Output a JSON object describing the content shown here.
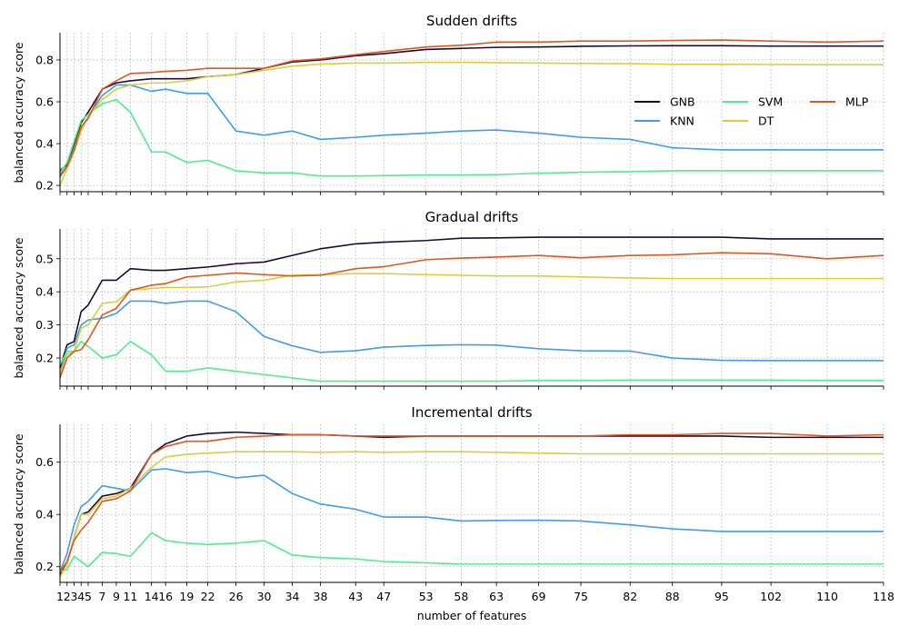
{
  "chart_data": [
    {
      "type": "line",
      "title": "Sudden drifts",
      "xlabel": "",
      "ylabel": "balanced accuracy score",
      "ylim": [
        0.17,
        0.93
      ],
      "yticks": [
        0.2,
        0.4,
        0.6,
        0.8
      ],
      "grid": true,
      "legend": {
        "placement": "center-right",
        "columns": 3
      },
      "series": [
        {
          "name": "GNB",
          "color": "#1f0a33",
          "values": [
            0.27,
            0.3,
            0.4,
            0.5,
            0.55,
            0.66,
            0.69,
            0.7,
            0.71,
            0.71,
            0.71,
            0.72,
            0.73,
            0.76,
            0.79,
            0.8,
            0.82,
            0.83,
            0.85,
            0.855,
            0.86,
            0.862,
            0.865,
            0.867,
            0.868,
            0.868,
            0.866,
            0.866,
            0.866
          ]
        },
        {
          "name": "KNN",
          "color": "#3f9cf0",
          "values": [
            0.24,
            0.29,
            0.38,
            0.47,
            0.53,
            0.63,
            0.68,
            0.68,
            0.65,
            0.66,
            0.64,
            0.64,
            0.46,
            0.44,
            0.46,
            0.42,
            0.43,
            0.44,
            0.45,
            0.46,
            0.465,
            0.45,
            0.43,
            0.42,
            0.38,
            0.37,
            0.37,
            0.37,
            0.37
          ]
        },
        {
          "name": "SVM",
          "color": "#4bf08a",
          "values": [
            0.26,
            0.31,
            0.41,
            0.51,
            0.54,
            0.59,
            0.61,
            0.55,
            0.36,
            0.36,
            0.31,
            0.32,
            0.27,
            0.26,
            0.26,
            0.245,
            0.245,
            0.247,
            0.25,
            0.25,
            0.252,
            0.258,
            0.263,
            0.266,
            0.27,
            0.27,
            0.27,
            0.27,
            0.27
          ]
        },
        {
          "name": "DT",
          "color": "#d8cf3c",
          "values": [
            0.2,
            0.28,
            0.36,
            0.46,
            0.53,
            0.61,
            0.66,
            0.68,
            0.69,
            0.69,
            0.7,
            0.72,
            0.73,
            0.75,
            0.77,
            0.78,
            0.785,
            0.785,
            0.788,
            0.788,
            0.787,
            0.785,
            0.783,
            0.782,
            0.779,
            0.779,
            0.778,
            0.777,
            0.777
          ]
        },
        {
          "name": "MLP",
          "color": "#e2561e",
          "values": [
            0.25,
            0.29,
            0.37,
            0.48,
            0.52,
            0.66,
            0.7,
            0.735,
            0.74,
            0.745,
            0.75,
            0.76,
            0.76,
            0.76,
            0.795,
            0.805,
            0.825,
            0.84,
            0.862,
            0.87,
            0.885,
            0.885,
            0.89,
            0.89,
            0.893,
            0.895,
            0.89,
            0.885,
            0.89
          ]
        }
      ]
    },
    {
      "type": "line",
      "title": "Gradual drifts",
      "xlabel": "",
      "ylabel": "balanced accuracy score",
      "ylim": [
        0.115,
        0.59
      ],
      "yticks": [
        0.2,
        0.3,
        0.4,
        0.5
      ],
      "grid": true,
      "series": [
        {
          "name": "GNB",
          "color": "#1f0a33",
          "values": [
            0.17,
            0.24,
            0.25,
            0.34,
            0.36,
            0.435,
            0.435,
            0.47,
            0.465,
            0.465,
            0.47,
            0.475,
            0.485,
            0.49,
            0.51,
            0.53,
            0.545,
            0.55,
            0.555,
            0.562,
            0.563,
            0.565,
            0.565,
            0.565,
            0.565,
            0.565,
            0.56,
            0.56,
            0.56
          ]
        },
        {
          "name": "KNN",
          "color": "#3f9cf0",
          "values": [
            0.15,
            0.23,
            0.24,
            0.3,
            0.315,
            0.32,
            0.335,
            0.372,
            0.372,
            0.365,
            0.372,
            0.372,
            0.34,
            0.265,
            0.237,
            0.217,
            0.222,
            0.233,
            0.238,
            0.24,
            0.239,
            0.228,
            0.222,
            0.221,
            0.2,
            0.193,
            0.192,
            0.192,
            0.192
          ]
        },
        {
          "name": "SVM",
          "color": "#4bf08a",
          "values": [
            0.18,
            0.22,
            0.22,
            0.25,
            0.235,
            0.2,
            0.21,
            0.25,
            0.21,
            0.16,
            0.16,
            0.17,
            0.16,
            0.15,
            0.14,
            0.13,
            0.13,
            0.13,
            0.13,
            0.13,
            0.13,
            0.132,
            0.132,
            0.133,
            0.133,
            0.133,
            0.133,
            0.132,
            0.132
          ]
        },
        {
          "name": "DT",
          "color": "#d8cf3c",
          "values": [
            0.15,
            0.21,
            0.22,
            0.29,
            0.3,
            0.365,
            0.37,
            0.405,
            0.41,
            0.413,
            0.413,
            0.415,
            0.43,
            0.435,
            0.45,
            0.452,
            0.455,
            0.455,
            0.452,
            0.45,
            0.448,
            0.448,
            0.445,
            0.442,
            0.44,
            0.44,
            0.44,
            0.44,
            0.44
          ]
        },
        {
          "name": "MLP",
          "color": "#e2561e",
          "values": [
            0.14,
            0.2,
            0.22,
            0.225,
            0.255,
            0.33,
            0.35,
            0.405,
            0.42,
            0.425,
            0.445,
            0.45,
            0.457,
            0.452,
            0.448,
            0.45,
            0.47,
            0.476,
            0.497,
            0.502,
            0.505,
            0.51,
            0.503,
            0.51,
            0.512,
            0.518,
            0.515,
            0.5,
            0.51
          ]
        }
      ]
    },
    {
      "type": "line",
      "title": "Incremental drifts",
      "xlabel": "number of features",
      "ylabel": "balanced accuracy score",
      "ylim": [
        0.14,
        0.745
      ],
      "yticks": [
        0.2,
        0.4,
        0.6
      ],
      "grid": true,
      "x": [
        1,
        2,
        3,
        4,
        5,
        7,
        9,
        11,
        14,
        16,
        19,
        22,
        26,
        30,
        34,
        38,
        43,
        47,
        53,
        58,
        63,
        69,
        75,
        82,
        88,
        95,
        102,
        110,
        118
      ],
      "xticks": [
        1,
        2,
        3,
        4,
        5,
        7,
        9,
        11,
        14,
        16,
        19,
        22,
        26,
        30,
        34,
        38,
        43,
        47,
        53,
        58,
        63,
        69,
        75,
        82,
        88,
        95,
        102,
        110,
        118
      ],
      "series": [
        {
          "name": "GNB",
          "color": "#1f0a33",
          "values": [
            0.17,
            0.21,
            0.31,
            0.4,
            0.41,
            0.47,
            0.48,
            0.5,
            0.63,
            0.67,
            0.7,
            0.71,
            0.715,
            0.71,
            0.705,
            0.705,
            0.7,
            0.695,
            0.7,
            0.7,
            0.7,
            0.7,
            0.7,
            0.7,
            0.7,
            0.7,
            0.695,
            0.695,
            0.695
          ]
        },
        {
          "name": "KNN",
          "color": "#3f9cf0",
          "values": [
            0.18,
            0.25,
            0.36,
            0.43,
            0.45,
            0.51,
            0.5,
            0.49,
            0.57,
            0.575,
            0.56,
            0.565,
            0.54,
            0.55,
            0.48,
            0.44,
            0.42,
            0.39,
            0.39,
            0.375,
            0.377,
            0.378,
            0.375,
            0.36,
            0.345,
            0.335,
            0.335,
            0.335,
            0.335
          ]
        },
        {
          "name": "SVM",
          "color": "#4bf08a",
          "values": [
            0.18,
            0.19,
            0.24,
            0.22,
            0.2,
            0.255,
            0.25,
            0.24,
            0.33,
            0.3,
            0.29,
            0.285,
            0.29,
            0.3,
            0.245,
            0.235,
            0.23,
            0.22,
            0.215,
            0.21,
            0.21,
            0.21,
            0.21,
            0.21,
            0.21,
            0.21,
            0.21,
            0.21,
            0.21
          ]
        },
        {
          "name": "DT",
          "color": "#d8cf3c",
          "values": [
            0.16,
            0.21,
            0.31,
            0.4,
            0.4,
            0.46,
            0.47,
            0.5,
            0.58,
            0.62,
            0.63,
            0.635,
            0.64,
            0.64,
            0.64,
            0.638,
            0.64,
            0.638,
            0.64,
            0.64,
            0.638,
            0.635,
            0.632,
            0.632,
            0.632,
            0.632,
            0.632,
            0.632,
            0.632
          ]
        },
        {
          "name": "MLP",
          "color": "#e2561e",
          "values": [
            0.18,
            0.22,
            0.3,
            0.34,
            0.37,
            0.45,
            0.46,
            0.49,
            0.63,
            0.66,
            0.68,
            0.68,
            0.695,
            0.7,
            0.705,
            0.705,
            0.7,
            0.7,
            0.7,
            0.7,
            0.7,
            0.7,
            0.7,
            0.705,
            0.705,
            0.71,
            0.71,
            0.7,
            0.705
          ]
        }
      ]
    }
  ]
}
